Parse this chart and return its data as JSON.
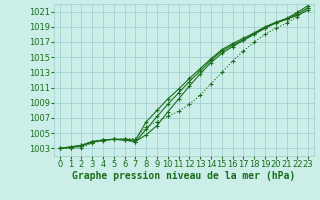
{
  "background_color": "#cceee8",
  "grid_color": "#99cccc",
  "line_color": "#1a6e1a",
  "xlabel": "Graphe pression niveau de la mer (hPa)",
  "xlabel_fontsize": 7,
  "tick_fontsize": 6,
  "ylim": [
    1002.0,
    1022.0
  ],
  "xlim": [
    -0.5,
    23.5
  ],
  "yticks": [
    1003,
    1005,
    1007,
    1009,
    1011,
    1013,
    1015,
    1017,
    1019,
    1021
  ],
  "xticks": [
    0,
    1,
    2,
    3,
    4,
    5,
    6,
    7,
    8,
    9,
    10,
    11,
    12,
    13,
    14,
    15,
    16,
    17,
    18,
    19,
    20,
    21,
    22,
    23
  ],
  "series": [
    {
      "y": [
        1003.0,
        1003.2,
        1003.4,
        1003.9,
        1004.1,
        1004.2,
        1004.1,
        1003.9,
        1004.8,
        1006.0,
        1007.8,
        1009.5,
        1011.2,
        1012.8,
        1014.3,
        1015.5,
        1016.4,
        1017.2,
        1018.0,
        1018.8,
        1019.5,
        1020.0,
        1020.5,
        1021.2
      ],
      "linestyle": "-",
      "marker": "+"
    },
    {
      "y": [
        1003.0,
        1003.2,
        1003.4,
        1003.9,
        1004.1,
        1004.2,
        1004.1,
        1003.9,
        1005.5,
        1007.2,
        1008.8,
        1010.3,
        1011.8,
        1013.2,
        1014.6,
        1015.8,
        1016.6,
        1017.3,
        1018.1,
        1018.9,
        1019.5,
        1020.0,
        1020.7,
        1021.5
      ],
      "linestyle": "-",
      "marker": "+"
    },
    {
      "y": [
        1003.0,
        1003.1,
        1003.3,
        1003.8,
        1004.1,
        1004.2,
        1004.2,
        1004.1,
        1006.5,
        1008.0,
        1009.5,
        1010.8,
        1012.2,
        1013.5,
        1014.8,
        1016.0,
        1016.8,
        1017.5,
        1018.2,
        1019.0,
        1019.6,
        1020.1,
        1020.9,
        1021.8
      ],
      "linestyle": "-",
      "marker": "+"
    },
    {
      "y": [
        1003.0,
        1003.0,
        1003.1,
        1003.7,
        1004.0,
        1004.2,
        1004.3,
        1004.3,
        1005.8,
        1006.5,
        1007.2,
        1007.9,
        1008.8,
        1010.0,
        1011.5,
        1013.0,
        1014.5,
        1015.8,
        1017.0,
        1018.0,
        1018.8,
        1019.5,
        1020.3,
        1021.5
      ],
      "linestyle": ":",
      "marker": "+"
    }
  ]
}
